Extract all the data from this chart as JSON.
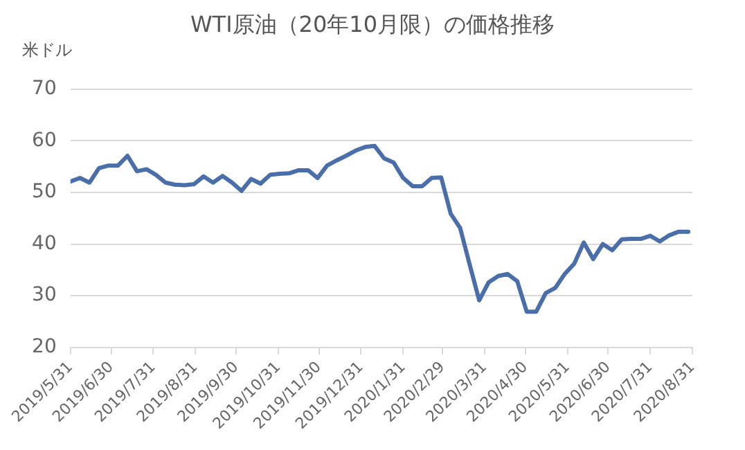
{
  "chart_data": {
    "type": "line",
    "title": "WTI原油（20年10月限）の価格推移",
    "ylabel": "米ドル",
    "x": [
      "2019-05-31",
      "2019-06-07",
      "2019-06-14",
      "2019-06-21",
      "2019-06-28",
      "2019-07-05",
      "2019-07-12",
      "2019-07-19",
      "2019-07-26",
      "2019-08-02",
      "2019-08-09",
      "2019-08-16",
      "2019-08-23",
      "2019-08-30",
      "2019-09-06",
      "2019-09-13",
      "2019-09-20",
      "2019-09-27",
      "2019-10-04",
      "2019-10-11",
      "2019-10-18",
      "2019-10-25",
      "2019-11-01",
      "2019-11-08",
      "2019-11-15",
      "2019-11-22",
      "2019-11-29",
      "2019-12-06",
      "2019-12-13",
      "2019-12-20",
      "2019-12-27",
      "2020-01-03",
      "2020-01-10",
      "2020-01-17",
      "2020-01-24",
      "2020-01-31",
      "2020-02-07",
      "2020-02-14",
      "2020-02-21",
      "2020-02-28",
      "2020-03-06",
      "2020-03-13",
      "2020-03-20",
      "2020-03-27",
      "2020-04-03",
      "2020-04-10",
      "2020-04-17",
      "2020-04-24",
      "2020-05-01",
      "2020-05-08",
      "2020-05-15",
      "2020-05-22",
      "2020-05-29",
      "2020-06-05",
      "2020-06-12",
      "2020-06-19",
      "2020-06-26",
      "2020-07-03",
      "2020-07-10",
      "2020-07-17",
      "2020-07-24",
      "2020-07-31",
      "2020-08-07",
      "2020-08-14",
      "2020-08-21",
      "2020-08-28"
    ],
    "series": [
      {
        "color": "#4a6ea9",
        "values": [
          52.1,
          52.8,
          51.9,
          54.7,
          55.2,
          55.2,
          57.1,
          54.1,
          54.5,
          53.4,
          51.9,
          51.5,
          51.4,
          51.6,
          53.1,
          51.9,
          53.2,
          51.9,
          50.3,
          52.6,
          51.7,
          53.4,
          53.6,
          53.7,
          54.3,
          54.3,
          52.8,
          55.2,
          56.2,
          57.1,
          58.1,
          58.8,
          59.0,
          56.6,
          55.8,
          52.8,
          51.2,
          51.2,
          52.8,
          52.9,
          45.9,
          43.1,
          36.0,
          29.1,
          32.6,
          33.8,
          34.2,
          32.8,
          26.9,
          26.9,
          30.5,
          31.5,
          34.2,
          36.2,
          40.3,
          37.1,
          40.0,
          38.8,
          40.9,
          41.0,
          41.0,
          41.6,
          40.5,
          41.7,
          42.4,
          42.4
        ]
      }
    ],
    "xlim": [
      "2019-05-31",
      "2020-08-31"
    ],
    "xticks": [
      {
        "value": "2019-05-31",
        "label": "2019/5/31"
      },
      {
        "value": "2019-06-30",
        "label": "2019/6/30"
      },
      {
        "value": "2019-07-31",
        "label": "2019/7/31"
      },
      {
        "value": "2019-08-31",
        "label": "2019/8/31"
      },
      {
        "value": "2019-09-30",
        "label": "2019/9/30"
      },
      {
        "value": "2019-10-31",
        "label": "2019/10/31"
      },
      {
        "value": "2019-11-30",
        "label": "2019/11/30"
      },
      {
        "value": "2019-12-31",
        "label": "2019/12/31"
      },
      {
        "value": "2020-01-31",
        "label": "2020/1/31"
      },
      {
        "value": "2020-02-29",
        "label": "2020/2/29"
      },
      {
        "value": "2020-03-31",
        "label": "2020/3/31"
      },
      {
        "value": "2020-04-30",
        "label": "2020/4/30"
      },
      {
        "value": "2020-05-31",
        "label": "2020/5/31"
      },
      {
        "value": "2020-06-30",
        "label": "2020/6/30"
      },
      {
        "value": "2020-07-31",
        "label": "2020/7/31"
      },
      {
        "value": "2020-08-31",
        "label": "2020/8/31"
      }
    ],
    "ylim": [
      20,
      70
    ],
    "yticks": [
      20,
      30,
      40,
      50,
      60,
      70
    ],
    "grid": "y",
    "legend": false,
    "marker": "none",
    "line_style": "solid"
  }
}
